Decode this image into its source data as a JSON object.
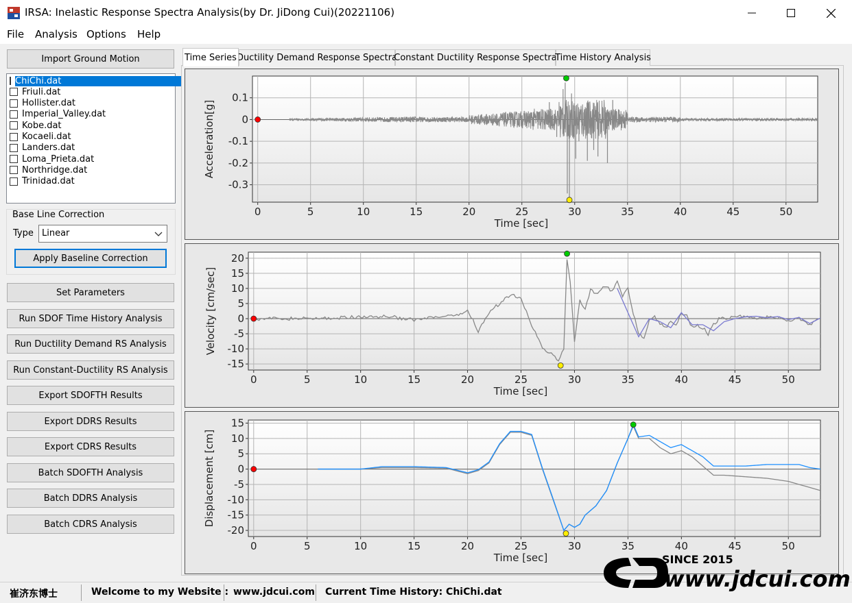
{
  "window": {
    "title": "IRSA: Inelastic Response Spectra Analysis(by Dr. JiDong Cui)(20221106)",
    "minimize_icon": "minimize-icon",
    "maximize_icon": "maximize-icon",
    "close_icon": "close-icon"
  },
  "menu": [
    "File",
    "Analysis",
    "Options",
    "Help"
  ],
  "left_panel": {
    "import_button": "Import Ground Motion",
    "files": [
      "ChiChi.dat",
      "Friuli.dat",
      "Hollister.dat",
      "Imperial_Valley.dat",
      "Kobe.dat",
      "Kocaeli.dat",
      "Landers.dat",
      "Loma_Prieta.dat",
      "Northridge.dat",
      "Trinidad.dat"
    ],
    "selected_file_index": 0,
    "baseline": {
      "group_label": "Base Line Correction",
      "type_label": "Type",
      "type_value": "Linear",
      "apply_button": "Apply Baseline Correction"
    },
    "buttons": [
      "Set Parameters",
      "Run SDOF Time History Analysis",
      "Run Ductility Demand RS Analysis",
      "Run Constant-Ductility RS Analysis",
      "Export SDOFTH Results",
      "Export DDRS Results",
      "Export CDRS Results",
      "Batch SDOFTH Analysis",
      "Batch DDRS Analysis",
      "Batch CDRS Analysis"
    ]
  },
  "tabs": [
    "Time Series",
    "Ductility Demand Response Spectra",
    "Constant Ductility Response Spectra",
    "Time History Analysis"
  ],
  "active_tab": 0,
  "chart_data": [
    {
      "type": "line",
      "xlabel": "Time [sec]",
      "ylabel": "Acceleration[g]",
      "xticks": [
        0,
        5,
        10,
        15,
        20,
        25,
        30,
        35,
        40,
        45,
        50
      ],
      "yticks": [
        0.1,
        0,
        -0.1,
        -0.2,
        -0.3
      ],
      "xlim": [
        -0.5,
        53
      ],
      "ylim": [
        -0.38,
        0.2
      ],
      "grid": true,
      "colors": [
        "#888888"
      ],
      "markers": [
        {
          "x": 0,
          "y": 0,
          "color": "#ff0000"
        },
        {
          "x": 29.2,
          "y": 0.19,
          "color": "#00cc00"
        },
        {
          "x": 29.5,
          "y": -0.37,
          "color": "#ffee00"
        }
      ]
    },
    {
      "type": "line",
      "xlabel": "Time [sec]",
      "ylabel": "Velocity [cm/sec]",
      "xticks": [
        0,
        5,
        10,
        15,
        20,
        25,
        30,
        35,
        40,
        45,
        50
      ],
      "yticks": [
        20,
        15,
        10,
        5,
        0,
        -5,
        -10,
        -15
      ],
      "xlim": [
        -0.5,
        53
      ],
      "ylim": [
        -17,
        22
      ],
      "grid": true,
      "series": [
        {
          "color": "#888888",
          "x": [
            0,
            2.5,
            5,
            7.5,
            10,
            12.5,
            15,
            17.5,
            19,
            20,
            21,
            22,
            23,
            24,
            25,
            26,
            27,
            28,
            28.5,
            29,
            29.3,
            29.6,
            30,
            30.5,
            31,
            31.5,
            32,
            32.5,
            33,
            33.5,
            34,
            34.5,
            35,
            35.5,
            36,
            36.5,
            37,
            37.5,
            38,
            38.5,
            39,
            39.5,
            40,
            40.5,
            41,
            41.5,
            42,
            42.5,
            43,
            43.5,
            44,
            45,
            46,
            47,
            48,
            49,
            50,
            51,
            52,
            53
          ],
          "y": [
            0,
            0,
            0,
            0.2,
            0.5,
            0.8,
            -0.5,
            0.6,
            0.8,
            3,
            -4,
            2,
            5,
            8,
            7,
            -2,
            -10,
            -12,
            -14,
            -10,
            20,
            12,
            -8,
            6,
            3,
            10,
            8,
            10,
            11,
            9,
            12,
            7,
            10,
            2,
            -5,
            -7,
            0,
            1,
            -2,
            -3,
            -1,
            -2,
            2,
            1,
            -3,
            -2,
            -3,
            -5,
            -2,
            0,
            0,
            0.5,
            0.8,
            0.2,
            0.5,
            0.3,
            -0.5,
            0,
            -2,
            0
          ]
        },
        {
          "color": "#7a7ad0",
          "x": [
            34,
            35,
            36,
            37,
            38,
            39,
            40,
            41,
            42,
            43,
            44,
            45,
            46,
            47,
            48,
            49,
            50,
            51,
            52,
            53
          ],
          "y": [
            10,
            2,
            -6,
            0,
            -1,
            -3,
            2,
            -2,
            -2,
            -4,
            -1,
            0,
            0.6,
            0.8,
            0.3,
            0.7,
            -0.3,
            0.4,
            -1.6,
            0.2
          ]
        }
      ],
      "markers": [
        {
          "x": 0,
          "y": 0,
          "color": "#ff0000"
        },
        {
          "x": 29.3,
          "y": 21.5,
          "color": "#00cc00"
        },
        {
          "x": 28.7,
          "y": -15.5,
          "color": "#ffee00"
        }
      ]
    },
    {
      "type": "line",
      "xlabel": "Time [sec]",
      "ylabel": "Displacement [cm]",
      "xticks": [
        0,
        5,
        10,
        15,
        20,
        25,
        30,
        35,
        40,
        45,
        50
      ],
      "yticks": [
        15,
        10,
        5,
        0,
        -5,
        -10,
        -15,
        -20
      ],
      "xlim": [
        -0.5,
        53
      ],
      "ylim": [
        -22,
        16
      ],
      "grid": true,
      "series": [
        {
          "color": "#888888",
          "x": [
            6,
            10,
            12,
            15,
            18,
            20,
            21,
            22,
            23,
            24,
            25,
            26,
            27,
            28,
            29,
            29.5,
            30,
            30.5,
            31,
            32,
            33,
            34,
            35,
            35.5,
            36,
            37,
            38,
            39,
            40,
            41,
            42,
            43,
            44,
            46,
            48,
            50,
            51,
            52,
            53
          ],
          "y": [
            0,
            0,
            0.5,
            0.5,
            0.3,
            -1.5,
            -0.5,
            2,
            8,
            12,
            12,
            11,
            0,
            -10,
            -20,
            -18,
            -19,
            -18,
            -15,
            -12,
            -7,
            2,
            10,
            14,
            10,
            10,
            7,
            5,
            6,
            4,
            1,
            -2,
            -2,
            -2.5,
            -3,
            -4,
            -5,
            -6,
            -7
          ]
        },
        {
          "color": "#1e90ff",
          "x": [
            6,
            10,
            12,
            15,
            18,
            20,
            21,
            22,
            23,
            24,
            25,
            26,
            27,
            28,
            29,
            29.5,
            30,
            30.5,
            31,
            32,
            33,
            34,
            35,
            35.5,
            36,
            37,
            38,
            39,
            40,
            41,
            42,
            43,
            44,
            46,
            48,
            50,
            51,
            52,
            53
          ],
          "y": [
            0,
            0,
            0.8,
            0.8,
            0.5,
            -1.2,
            -0.2,
            2.3,
            8.3,
            12.3,
            12.3,
            11.3,
            0.3,
            -9.7,
            -20,
            -18,
            -19,
            -18,
            -15,
            -12,
            -7,
            2,
            10,
            14.5,
            10.5,
            11,
            9,
            7,
            8,
            6,
            4,
            1,
            1,
            1,
            1.5,
            1.5,
            1.5,
            0.5,
            0
          ]
        }
      ],
      "markers": [
        {
          "x": 0,
          "y": 0,
          "color": "#ff0000"
        },
        {
          "x": 35.5,
          "y": 14.5,
          "color": "#00cc00"
        },
        {
          "x": 29.2,
          "y": -21,
          "color": "#ffee00"
        }
      ]
    }
  ],
  "statusbar": {
    "author": "崔济东博士",
    "welcome": "Welcome to my Website :",
    "website": "www.jdcui.com",
    "current": "Current Time History: ChiChi.dat"
  },
  "watermark": {
    "since": "SINCE 2015",
    "url": "www.jdcui.com"
  }
}
